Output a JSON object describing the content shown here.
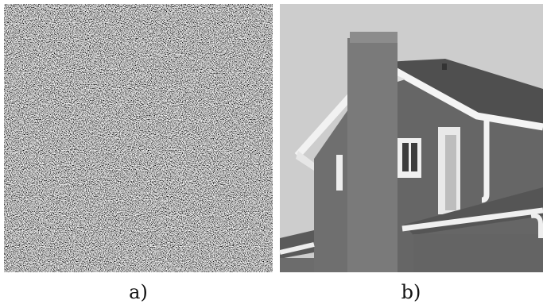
{
  "captions": [
    "a)",
    "b)"
  ]
}
